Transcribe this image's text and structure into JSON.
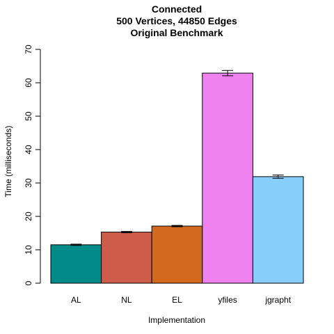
{
  "chart_data": {
    "type": "bar",
    "title": [
      "Connected",
      "500 Vertices, 44850 Edges",
      "Original Benchmark"
    ],
    "xlabel": "Implementation",
    "ylabel": "Time (milliseconds)",
    "ylim": [
      0,
      70
    ],
    "yticks": [
      "0",
      "10",
      "20",
      "30",
      "40",
      "50",
      "60",
      "70"
    ],
    "grid": false,
    "legend": "none",
    "categories": [
      "AL",
      "NL",
      "EL",
      "yfiles",
      "jgrapht"
    ],
    "values": [
      11.5,
      15.3,
      17.1,
      62.9,
      31.9
    ],
    "errors": [
      0.2,
      0.2,
      0.2,
      0.8,
      0.5
    ],
    "colors": [
      "#008B8B",
      "#CD5C4A",
      "#D2691E",
      "#EE82EE",
      "#87CEFA"
    ]
  }
}
